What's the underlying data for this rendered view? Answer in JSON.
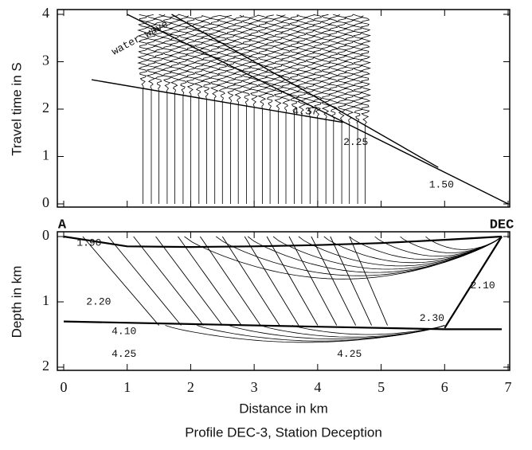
{
  "chart_data": [
    {
      "type": "line",
      "y_label": "Travel time in S",
      "xlim": [
        0,
        7
      ],
      "xticks": [
        0,
        1,
        2,
        3,
        4,
        5,
        6,
        7
      ],
      "ylim": [
        0,
        4
      ],
      "yticks": [
        0,
        1,
        2,
        3,
        4
      ],
      "annotations": [
        "water wave",
        "4.37",
        "2.25",
        "1.50"
      ],
      "series": [
        {
          "x": [
            1,
            7
          ],
          "values": [
            4,
            0
          ]
        },
        {
          "x": [
            1.7,
            5.9
          ],
          "values": [
            4,
            0.77
          ]
        },
        {
          "x": [
            0.44,
            4.4
          ],
          "values": [
            2.62,
            1.72
          ]
        }
      ],
      "traces": [
        1.25,
        1.38,
        1.5,
        1.63,
        1.75,
        1.88,
        2.0,
        2.13,
        2.25,
        2.38,
        2.5,
        2.63,
        2.75,
        2.88,
        3.0,
        3.13,
        3.25,
        3.38,
        3.5,
        3.63,
        3.75,
        3.88,
        4.0,
        4.13,
        4.25,
        4.38,
        4.5,
        4.63,
        4.75
      ],
      "end_labels": [
        "A",
        "DEC"
      ]
    },
    {
      "type": "ray",
      "y_label": "Depth in km",
      "x_label": "Distance in km",
      "caption": "Profile DEC-3, Station Deception",
      "xlim": [
        0,
        7
      ],
      "xticks": [
        0,
        1,
        2,
        3,
        4,
        5,
        6,
        7
      ],
      "ylim": [
        0,
        2
      ],
      "yticks": [
        0,
        1,
        2
      ],
      "annotations": [
        "1.90",
        "2.20",
        "2.10",
        "2.30",
        "4.10",
        "4.25",
        "4.25"
      ],
      "series": [
        {
          "x": [
            0,
            1,
            2,
            3,
            4,
            5,
            6,
            6.9
          ],
          "values": [
            0,
            0.15,
            0.16,
            0.15,
            0.13,
            0.1,
            0.05,
            0
          ]
        },
        {
          "x": [
            0,
            2,
            4,
            6,
            6.9
          ],
          "values": [
            1.3,
            1.34,
            1.38,
            1.42,
            1.42
          ]
        },
        {
          "x": [
            6.9,
            6.0
          ],
          "values": [
            0,
            1.4
          ]
        }
      ],
      "ray_start": [
        0.3,
        0.7,
        1.1,
        1.45,
        1.8,
        2.15,
        2.5,
        2.85,
        3.2,
        3.55,
        3.9,
        4.2,
        4.5
      ],
      "ray_end": [
        1.5,
        1.85,
        2.2,
        2.5,
        2.8,
        3.1,
        3.4,
        3.7,
        4.0,
        4.3,
        4.6,
        4.85,
        5.1
      ],
      "curve_start": [
        1.9,
        2.4,
        2.9,
        3.3,
        3.7,
        4.1,
        4.5,
        4.9,
        5.3,
        5.7
      ],
      "curve_depth": [
        0.65,
        0.6,
        0.55,
        0.5,
        0.45,
        0.4,
        0.35,
        0.3,
        0.25,
        0.2
      ],
      "deep_start": [
        1.6,
        2.1,
        2.6,
        3.1,
        3.6
      ],
      "deep_depth": [
        1.62,
        1.6,
        1.57,
        1.54,
        1.5
      ]
    }
  ]
}
